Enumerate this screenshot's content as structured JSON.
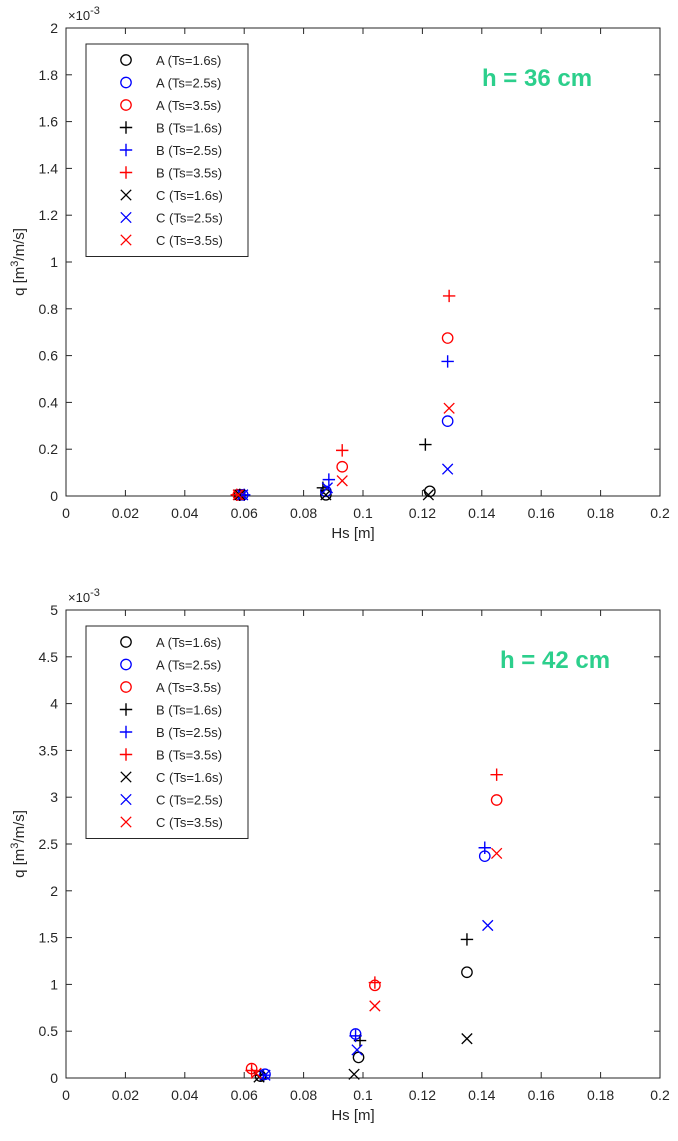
{
  "chart_data": [
    {
      "type": "scatter",
      "annotation": "h = 36 cm",
      "annotation_color": "#2ccf8c",
      "xlabel": "Hs [m]",
      "ylabel_main": "q [m",
      "ylabel_sup": "3",
      "ylabel_tail": "/m/s]",
      "exponent_base": "×10",
      "exponent_power": "-3",
      "xlim": [
        0,
        0.2
      ],
      "ylim": [
        0,
        2
      ],
      "x_ticks": [
        "0",
        "0.02",
        "0.04",
        "0.06",
        "0.08",
        "0.1",
        "0.12",
        "0.14",
        "0.16",
        "0.18",
        "0.2"
      ],
      "y_ticks": [
        "0",
        "0.2",
        "0.4",
        "0.6",
        "0.8",
        "1",
        "1.2",
        "1.4",
        "1.6",
        "1.8",
        "2"
      ],
      "legend_position": "top-left",
      "series": [
        {
          "name": "A (Ts=1.6s)",
          "marker": "o",
          "color": "#000000",
          "points": [
            [
              0.0585,
              0.005
            ],
            [
              0.0875,
              0.005
            ],
            [
              0.1225,
              0.02
            ]
          ]
        },
        {
          "name": "A (Ts=2.5s)",
          "marker": "o",
          "color": "#0000ff",
          "points": [
            [
              0.0595,
              0.005
            ],
            [
              0.0875,
              0.02
            ],
            [
              0.1285,
              0.32
            ]
          ]
        },
        {
          "name": "A (Ts=3.5s)",
          "marker": "o",
          "color": "#ff0000",
          "points": [
            [
              0.058,
              0.005
            ],
            [
              0.093,
              0.125
            ],
            [
              0.1285,
              0.675
            ]
          ]
        },
        {
          "name": "B (Ts=1.6s)",
          "marker": "+",
          "color": "#000000",
          "points": [
            [
              0.0585,
              0.005
            ],
            [
              0.0865,
              0.035
            ],
            [
              0.121,
              0.22
            ]
          ]
        },
        {
          "name": "B (Ts=2.5s)",
          "marker": "+",
          "color": "#0000ff",
          "points": [
            [
              0.06,
              0.005
            ],
            [
              0.0885,
              0.07
            ],
            [
              0.1285,
              0.575
            ]
          ]
        },
        {
          "name": "B (Ts=3.5s)",
          "marker": "+",
          "color": "#ff0000",
          "points": [
            [
              0.0575,
              0.005
            ],
            [
              0.093,
              0.195
            ],
            [
              0.129,
              0.855
            ]
          ]
        },
        {
          "name": "C (Ts=1.6s)",
          "marker": "x",
          "color": "#000000",
          "points": [
            [
              0.0585,
              0.005
            ],
            [
              0.0875,
              0.005
            ],
            [
              0.122,
              0.005
            ]
          ]
        },
        {
          "name": "C (Ts=2.5s)",
          "marker": "x",
          "color": "#0000ff",
          "points": [
            [
              0.0595,
              0.005
            ],
            [
              0.088,
              0.035
            ],
            [
              0.1285,
              0.115
            ]
          ]
        },
        {
          "name": "C (Ts=3.5s)",
          "marker": "x",
          "color": "#ff0000",
          "points": [
            [
              0.058,
              0.005
            ],
            [
              0.093,
              0.065
            ],
            [
              0.129,
              0.375
            ]
          ]
        }
      ]
    },
    {
      "type": "scatter",
      "annotation": "h = 42  cm",
      "annotation_color": "#2ccf8c",
      "xlabel": "Hs [m]",
      "ylabel_main": "q [m",
      "ylabel_sup": "3",
      "ylabel_tail": "/m/s]",
      "exponent_base": "×10",
      "exponent_power": "-3",
      "xlim": [
        0,
        0.2
      ],
      "ylim": [
        0,
        5
      ],
      "x_ticks": [
        "0",
        "0.02",
        "0.04",
        "0.06",
        "0.08",
        "0.1",
        "0.12",
        "0.14",
        "0.16",
        "0.18",
        "0.2"
      ],
      "y_ticks": [
        "0",
        "0.5",
        "1",
        "1.5",
        "2",
        "2.5",
        "3",
        "3.5",
        "4",
        "4.5",
        "5"
      ],
      "legend_position": "top-left",
      "series": [
        {
          "name": "A (Ts=1.6s)",
          "marker": "o",
          "color": "#000000",
          "points": [
            [
              0.0655,
              0.02
            ],
            [
              0.0985,
              0.22
            ],
            [
              0.135,
              1.13
            ]
          ]
        },
        {
          "name": "A (Ts=2.5s)",
          "marker": "o",
          "color": "#0000ff",
          "points": [
            [
              0.067,
              0.04
            ],
            [
              0.0975,
              0.47
            ],
            [
              0.141,
              2.37
            ]
          ]
        },
        {
          "name": "A (Ts=3.5s)",
          "marker": "o",
          "color": "#ff0000",
          "points": [
            [
              0.0625,
              0.1
            ],
            [
              0.104,
              0.99
            ],
            [
              0.145,
              2.97
            ]
          ]
        },
        {
          "name": "B (Ts=1.6s)",
          "marker": "+",
          "color": "#000000",
          "points": [
            [
              0.0655,
              0.03
            ],
            [
              0.099,
              0.4
            ],
            [
              0.135,
              1.48
            ]
          ]
        },
        {
          "name": "B (Ts=2.5s)",
          "marker": "+",
          "color": "#0000ff",
          "points": [
            [
              0.0665,
              0.03
            ],
            [
              0.0975,
              0.45
            ],
            [
              0.141,
              2.46
            ]
          ]
        },
        {
          "name": "B (Ts=3.5s)",
          "marker": "+",
          "color": "#ff0000",
          "points": [
            [
              0.0625,
              0.08
            ],
            [
              0.104,
              1.02
            ],
            [
              0.145,
              3.24
            ]
          ]
        },
        {
          "name": "C (Ts=1.6s)",
          "marker": "x",
          "color": "#000000",
          "points": [
            [
              0.065,
              0.01
            ],
            [
              0.097,
              0.04
            ],
            [
              0.135,
              0.42
            ]
          ]
        },
        {
          "name": "C (Ts=2.5s)",
          "marker": "x",
          "color": "#0000ff",
          "points": [
            [
              0.067,
              0.03
            ],
            [
              0.098,
              0.3
            ],
            [
              0.142,
              1.63
            ]
          ]
        },
        {
          "name": "C (Ts=3.5s)",
          "marker": "x",
          "color": "#ff0000",
          "points": [
            [
              0.064,
              0.05
            ],
            [
              0.104,
              0.77
            ],
            [
              0.145,
              2.4
            ]
          ]
        }
      ]
    }
  ]
}
